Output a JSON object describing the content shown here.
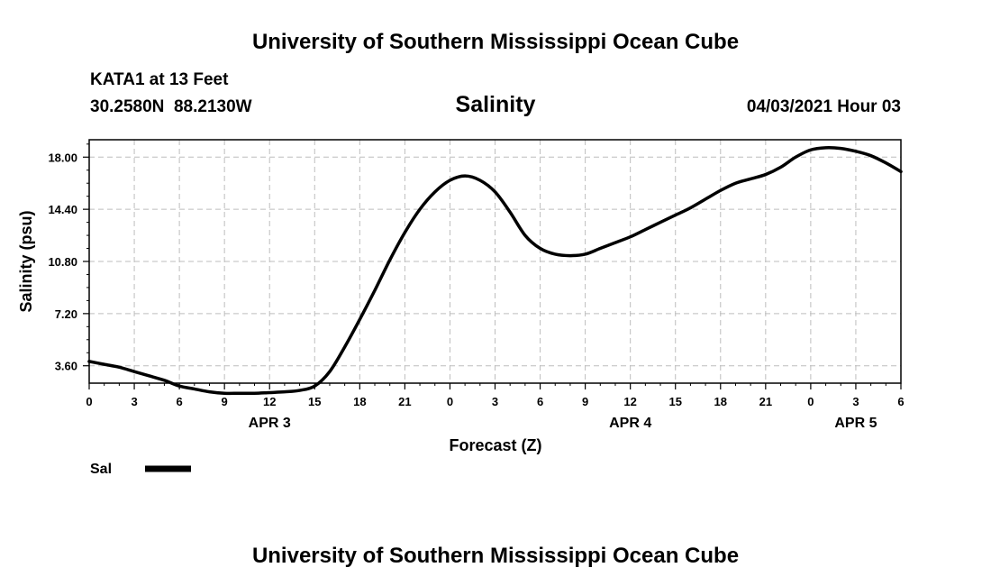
{
  "header": {
    "title": "University of Southern Mississippi Ocean Cube",
    "station": "KATA1 at 13 Feet",
    "coordinates": "30.2580N  88.2130W",
    "variable": "Salinity",
    "datetime": "04/03/2021 Hour 03"
  },
  "footer": {
    "title": "University of Southern Mississippi Ocean Cube"
  },
  "legend": {
    "label": "Sal",
    "color": "#000000"
  },
  "chart_data": {
    "type": "line",
    "title": "Salinity",
    "xlabel": "Forecast (Z)",
    "ylabel": "Salinity (psu)",
    "xlim": [
      0,
      54
    ],
    "ylim": [
      2.4,
      19.2
    ],
    "grid": true,
    "legend_position": "bottom-left",
    "x_ticks": [
      {
        "x": 0,
        "label": "0"
      },
      {
        "x": 3,
        "label": "3"
      },
      {
        "x": 6,
        "label": "6"
      },
      {
        "x": 9,
        "label": "9"
      },
      {
        "x": 12,
        "label": "12"
      },
      {
        "x": 15,
        "label": "15"
      },
      {
        "x": 18,
        "label": "18"
      },
      {
        "x": 21,
        "label": "21"
      },
      {
        "x": 24,
        "label": "0"
      },
      {
        "x": 27,
        "label": "3"
      },
      {
        "x": 30,
        "label": "6"
      },
      {
        "x": 33,
        "label": "9"
      },
      {
        "x": 36,
        "label": "12"
      },
      {
        "x": 39,
        "label": "15"
      },
      {
        "x": 42,
        "label": "18"
      },
      {
        "x": 45,
        "label": "21"
      },
      {
        "x": 48,
        "label": "0"
      },
      {
        "x": 51,
        "label": "3"
      },
      {
        "x": 54,
        "label": "6"
      }
    ],
    "date_labels": [
      {
        "x": 12,
        "label": "APR 3"
      },
      {
        "x": 36,
        "label": "APR 4"
      },
      {
        "x": 51,
        "label": "APR 5"
      }
    ],
    "y_ticks": [
      {
        "y": 3.6,
        "label": "3.60"
      },
      {
        "y": 7.2,
        "label": "7.20"
      },
      {
        "y": 10.8,
        "label": "10.80"
      },
      {
        "y": 14.4,
        "label": "14.40"
      },
      {
        "y": 18.0,
        "label": "18.00"
      }
    ],
    "series": [
      {
        "name": "Sal",
        "color": "#000000",
        "x": [
          0,
          1,
          2,
          3,
          4,
          5,
          6,
          7,
          8,
          9,
          10,
          11,
          12,
          13,
          14,
          15,
          16,
          17,
          18,
          19,
          20,
          21,
          22,
          23,
          24,
          25,
          26,
          27,
          28,
          29,
          30,
          31,
          32,
          33,
          34,
          35,
          36,
          37,
          38,
          39,
          40,
          41,
          42,
          43,
          44,
          45,
          46,
          47,
          48,
          49,
          50,
          51,
          52,
          53,
          54
        ],
        "y": [
          3.9,
          3.7,
          3.5,
          3.2,
          2.9,
          2.6,
          2.2,
          2.0,
          1.8,
          1.7,
          1.7,
          1.7,
          1.75,
          1.8,
          1.9,
          2.2,
          3.2,
          4.9,
          6.8,
          8.8,
          10.9,
          12.8,
          14.4,
          15.6,
          16.4,
          16.7,
          16.4,
          15.6,
          14.2,
          12.6,
          11.7,
          11.3,
          11.2,
          11.3,
          11.7,
          12.1,
          12.5,
          13.0,
          13.5,
          14.0,
          14.5,
          15.1,
          15.7,
          16.2,
          16.5,
          16.8,
          17.3,
          18.0,
          18.5,
          18.65,
          18.6,
          18.4,
          18.1,
          17.6,
          17.0
        ]
      }
    ]
  }
}
